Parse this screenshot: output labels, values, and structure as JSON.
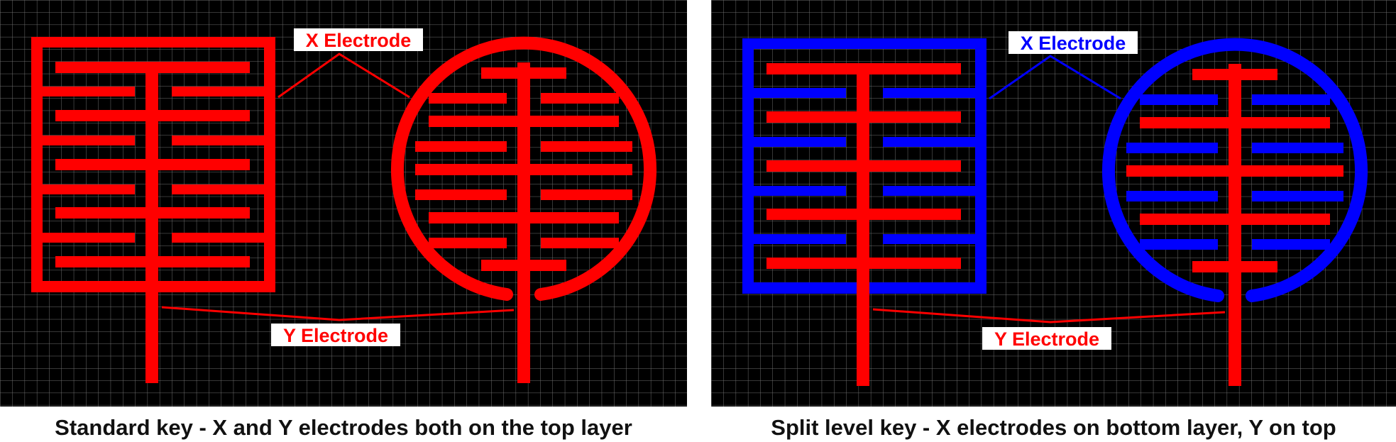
{
  "colors": {
    "background": "#000000",
    "grid_line": "#6f6f6f",
    "y_electrode": "#ff0000",
    "x_electrode_standard": "#ff0000",
    "x_electrode_split": "#0000ff",
    "label_box": "#ffffff"
  },
  "panels": [
    {
      "id": "standard",
      "x_label": "X Electrode",
      "y_label": "Y Electrode",
      "caption": "Standard key - X and Y electrodes both on the top layer"
    },
    {
      "id": "split",
      "x_label": "X Electrode",
      "y_label": "Y Electrode",
      "caption": "Split level key - X electrodes on bottom layer, Y on top"
    }
  ]
}
